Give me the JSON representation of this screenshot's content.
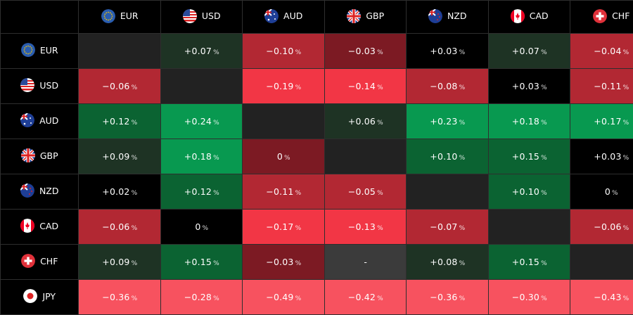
{
  "currencies": [
    "EUR",
    "USD",
    "AUD",
    "GBP",
    "NZD",
    "CAD",
    "CHF",
    "JPY"
  ],
  "columns": [
    "EUR",
    "USD",
    "AUD",
    "GBP",
    "NZD",
    "CAD",
    "CHF"
  ],
  "colors": {
    "self": "#222222",
    "black": "#000000",
    "dg": "#1e3324",
    "mg": "#0b6332",
    "bg": "#089950",
    "dr": "#7c1a23",
    "mr": "#b22833",
    "br": "#f23645",
    "pk": "#f7525f",
    "na": "#3b3b3b"
  },
  "flag_icons": {
    "EUR": "eu-flag-icon",
    "USD": "us-flag-icon",
    "AUD": "au-flag-icon",
    "GBP": "gb-flag-icon",
    "NZD": "nz-flag-icon",
    "CAD": "ca-flag-icon",
    "CHF": "ch-flag-icon",
    "JPY": "jp-flag-icon"
  },
  "percent_sign": "%",
  "rows": [
    {
      "label": "EUR",
      "cells": [
        {
          "v": "",
          "t": "self"
        },
        {
          "v": "+0.07",
          "t": "dg"
        },
        {
          "v": "−0.10",
          "t": "mr"
        },
        {
          "v": "−0.03",
          "t": "dr"
        },
        {
          "v": "+0.03",
          "t": "black"
        },
        {
          "v": "+0.07",
          "t": "dg"
        },
        {
          "v": "−0.04",
          "t": "mr"
        }
      ]
    },
    {
      "label": "USD",
      "cells": [
        {
          "v": "−0.06",
          "t": "mr"
        },
        {
          "v": "",
          "t": "self"
        },
        {
          "v": "−0.19",
          "t": "br"
        },
        {
          "v": "−0.14",
          "t": "br"
        },
        {
          "v": "−0.08",
          "t": "mr"
        },
        {
          "v": "+0.03",
          "t": "black"
        },
        {
          "v": "−0.11",
          "t": "mr"
        }
      ]
    },
    {
      "label": "AUD",
      "cells": [
        {
          "v": "+0.12",
          "t": "mg"
        },
        {
          "v": "+0.24",
          "t": "bg"
        },
        {
          "v": "",
          "t": "self"
        },
        {
          "v": "+0.06",
          "t": "dg"
        },
        {
          "v": "+0.23",
          "t": "bg"
        },
        {
          "v": "+0.18",
          "t": "bg"
        },
        {
          "v": "+0.17",
          "t": "bg"
        }
      ]
    },
    {
      "label": "GBP",
      "cells": [
        {
          "v": "+0.09",
          "t": "dg"
        },
        {
          "v": "+0.18",
          "t": "bg"
        },
        {
          "v": "0",
          "t": "dr"
        },
        {
          "v": "",
          "t": "self"
        },
        {
          "v": "+0.10",
          "t": "mg"
        },
        {
          "v": "+0.15",
          "t": "mg"
        },
        {
          "v": "+0.03",
          "t": "black"
        }
      ]
    },
    {
      "label": "NZD",
      "cells": [
        {
          "v": "+0.02",
          "t": "black"
        },
        {
          "v": "+0.12",
          "t": "mg"
        },
        {
          "v": "−0.11",
          "t": "mr"
        },
        {
          "v": "−0.05",
          "t": "mr"
        },
        {
          "v": "",
          "t": "self"
        },
        {
          "v": "+0.10",
          "t": "mg"
        },
        {
          "v": "0",
          "t": "black"
        }
      ]
    },
    {
      "label": "CAD",
      "cells": [
        {
          "v": "−0.06",
          "t": "mr"
        },
        {
          "v": "0",
          "t": "black"
        },
        {
          "v": "−0.17",
          "t": "br"
        },
        {
          "v": "−0.13",
          "t": "br"
        },
        {
          "v": "−0.07",
          "t": "mr"
        },
        {
          "v": "",
          "t": "self"
        },
        {
          "v": "−0.06",
          "t": "mr"
        }
      ]
    },
    {
      "label": "CHF",
      "cells": [
        {
          "v": "+0.09",
          "t": "dg"
        },
        {
          "v": "+0.15",
          "t": "mg"
        },
        {
          "v": "−0.03",
          "t": "dr"
        },
        {
          "v": "-",
          "t": "na"
        },
        {
          "v": "+0.08",
          "t": "dg"
        },
        {
          "v": "+0.15",
          "t": "mg"
        },
        {
          "v": "",
          "t": "self"
        }
      ]
    },
    {
      "label": "JPY",
      "cells": [
        {
          "v": "−0.36",
          "t": "pk"
        },
        {
          "v": "−0.28",
          "t": "pk"
        },
        {
          "v": "−0.49",
          "t": "pk"
        },
        {
          "v": "−0.42",
          "t": "pk"
        },
        {
          "v": "−0.36",
          "t": "pk"
        },
        {
          "v": "−0.30",
          "t": "pk"
        },
        {
          "v": "−0.43",
          "t": "pk"
        }
      ]
    }
  ]
}
